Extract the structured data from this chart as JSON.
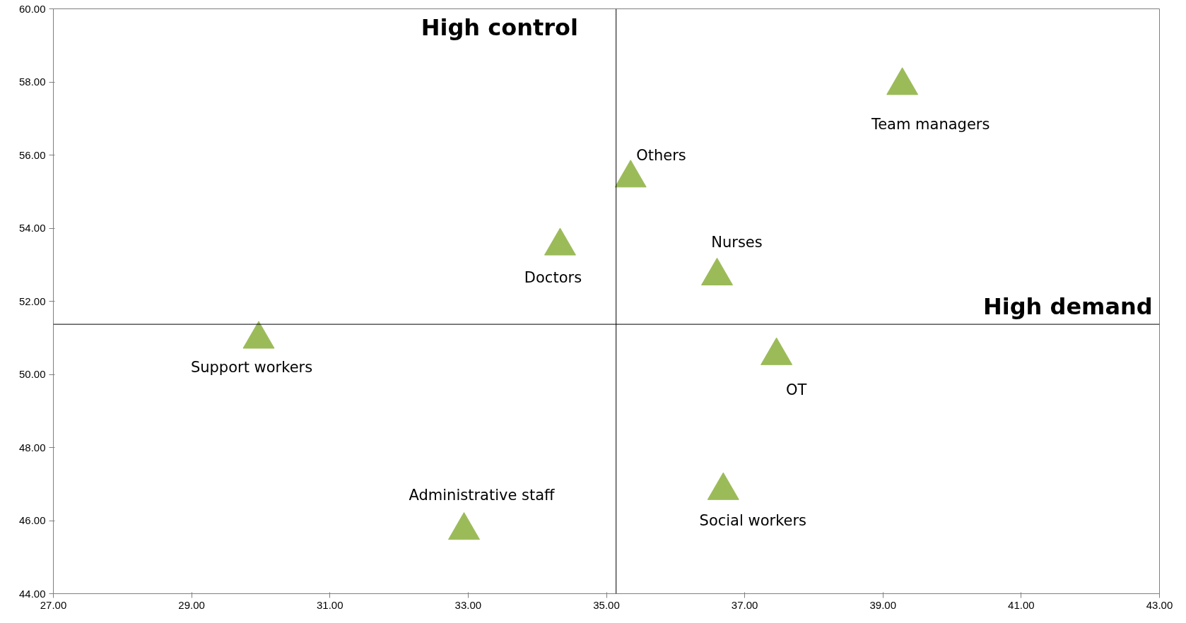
{
  "chart_data": {
    "type": "scatter",
    "x": [
      39.28,
      35.35,
      34.33,
      36.6,
      29.97,
      37.46,
      36.69,
      32.94
    ],
    "series": [
      {
        "color": "#9bbb59",
        "values": [
          57.9,
          55.37,
          53.51,
          52.69,
          50.96,
          50.51,
          46.82,
          45.73
        ],
        "value_labels": [
          "Team managers",
          "Others",
          "Doctors",
          "Nurses",
          "Support workers",
          "OT",
          "Social workers",
          "Administrative staff"
        ]
      }
    ],
    "marker": "triangle",
    "grid": false,
    "xlim": [
      27,
      43
    ],
    "ylim": [
      44,
      60
    ],
    "xticks": [
      {
        "value": 27,
        "label": "27.00"
      },
      {
        "value": 29,
        "label": "29.00"
      },
      {
        "value": 31,
        "label": "31.00"
      },
      {
        "value": 33,
        "label": "33.00"
      },
      {
        "value": 35,
        "label": "35.00"
      },
      {
        "value": 37,
        "label": "37.00"
      },
      {
        "value": 39,
        "label": "39.00"
      },
      {
        "value": 41,
        "label": "41.00"
      },
      {
        "value": 43,
        "label": "43.00"
      }
    ],
    "yticks": [
      {
        "value": 44,
        "label": "44.00"
      },
      {
        "value": 46,
        "label": "46.00"
      },
      {
        "value": 48,
        "label": "48.00"
      },
      {
        "value": 50,
        "label": "50.00"
      },
      {
        "value": 52,
        "label": "52.00"
      },
      {
        "value": 54,
        "label": "54.00"
      },
      {
        "value": 56,
        "label": "56.00"
      },
      {
        "value": 58,
        "label": "58.00"
      },
      {
        "value": 60,
        "label": "60.00"
      }
    ],
    "ref_lines": [
      {
        "axis": "x",
        "value": 35.14,
        "color": "#000000"
      },
      {
        "axis": "y",
        "value": 51.37,
        "color": "#000000"
      }
    ],
    "annotations": [
      "High control",
      "High demand"
    ]
  }
}
